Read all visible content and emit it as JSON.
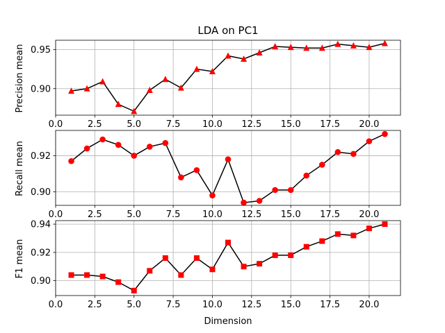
{
  "chart_data": [
    {
      "type": "line",
      "title": "LDA on PC1",
      "xlabel": "",
      "ylabel": "Precision mean",
      "x": [
        1,
        2,
        3,
        4,
        5,
        6,
        7,
        8,
        9,
        10,
        11,
        12,
        13,
        14,
        15,
        16,
        17,
        18,
        19,
        20,
        21
      ],
      "values": [
        0.897,
        0.9,
        0.909,
        0.88,
        0.871,
        0.898,
        0.912,
        0.901,
        0.925,
        0.922,
        0.942,
        0.938,
        0.946,
        0.954,
        0.953,
        0.952,
        0.952,
        0.957,
        0.955,
        0.953,
        0.958
      ],
      "marker": "triangle",
      "line_color": "#000000",
      "marker_color": "#ff0000",
      "xlim": [
        0.0,
        22.0
      ],
      "ylim": [
        0.866,
        0.962
      ],
      "xticks": [
        "0.0",
        "2.5",
        "5.0",
        "7.5",
        "10.0",
        "12.5",
        "15.0",
        "17.5",
        "20.0"
      ],
      "yticks": [
        "0.90",
        "0.95"
      ],
      "grid": true
    },
    {
      "type": "line",
      "title": "",
      "xlabel": "",
      "ylabel": "Recall mean",
      "x": [
        1,
        2,
        3,
        4,
        5,
        6,
        7,
        8,
        9,
        10,
        11,
        12,
        13,
        14,
        15,
        16,
        17,
        18,
        19,
        20,
        21
      ],
      "values": [
        0.917,
        0.924,
        0.929,
        0.926,
        0.92,
        0.925,
        0.927,
        0.908,
        0.912,
        0.898,
        0.918,
        0.894,
        0.895,
        0.901,
        0.901,
        0.909,
        0.915,
        0.922,
        0.921,
        0.928,
        0.932
      ],
      "marker": "circle",
      "line_color": "#000000",
      "marker_color": "#ff0000",
      "xlim": [
        0.0,
        22.0
      ],
      "ylim": [
        0.8925,
        0.934
      ],
      "xticks": [
        "0.0",
        "2.5",
        "5.0",
        "7.5",
        "10.0",
        "12.5",
        "15.0",
        "17.5",
        "20.0"
      ],
      "yticks": [
        "0.90",
        "0.92"
      ],
      "grid": true
    },
    {
      "type": "line",
      "title": "",
      "xlabel": "Dimension",
      "ylabel": "F1 mean",
      "x": [
        1,
        2,
        3,
        4,
        5,
        6,
        7,
        8,
        9,
        10,
        11,
        12,
        13,
        14,
        15,
        16,
        17,
        18,
        19,
        20,
        21
      ],
      "values": [
        0.904,
        0.904,
        0.903,
        0.899,
        0.893,
        0.907,
        0.916,
        0.904,
        0.916,
        0.908,
        0.927,
        0.91,
        0.912,
        0.918,
        0.918,
        0.924,
        0.928,
        0.933,
        0.932,
        0.937,
        0.94
      ],
      "marker": "square",
      "line_color": "#000000",
      "marker_color": "#ff0000",
      "xlim": [
        0.0,
        22.0
      ],
      "ylim": [
        0.8895,
        0.9425
      ],
      "xticks": [
        "0.0",
        "2.5",
        "5.0",
        "7.5",
        "10.0",
        "12.5",
        "15.0",
        "17.5",
        "20.0"
      ],
      "yticks": [
        "0.90",
        "0.92",
        "0.94"
      ],
      "grid": true
    }
  ]
}
